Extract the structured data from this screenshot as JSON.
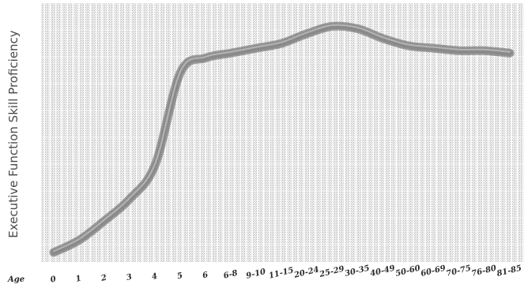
{
  "chart_data": {
    "type": "line",
    "title": "",
    "ylabel": "Executive Function Skill Proficiency",
    "xlabel": "Age",
    "categories": [
      "0",
      "1",
      "2",
      "3",
      "4",
      "5",
      "6",
      "6-8",
      "9-10",
      "11-15",
      "20-24",
      "25-29",
      "30-35",
      "40-49",
      "50-60",
      "60-69",
      "70-75",
      "76-80",
      "81-85"
    ],
    "ylim": [
      0,
      100
    ],
    "grid": true,
    "legend": "none",
    "series": [
      {
        "color": "#8a8a8a",
        "values": [
          2,
          7,
          15,
          24,
          38,
          76,
          82,
          84,
          86,
          88,
          92,
          95,
          94,
          90,
          87,
          86,
          85,
          85,
          84
        ]
      }
    ]
  }
}
